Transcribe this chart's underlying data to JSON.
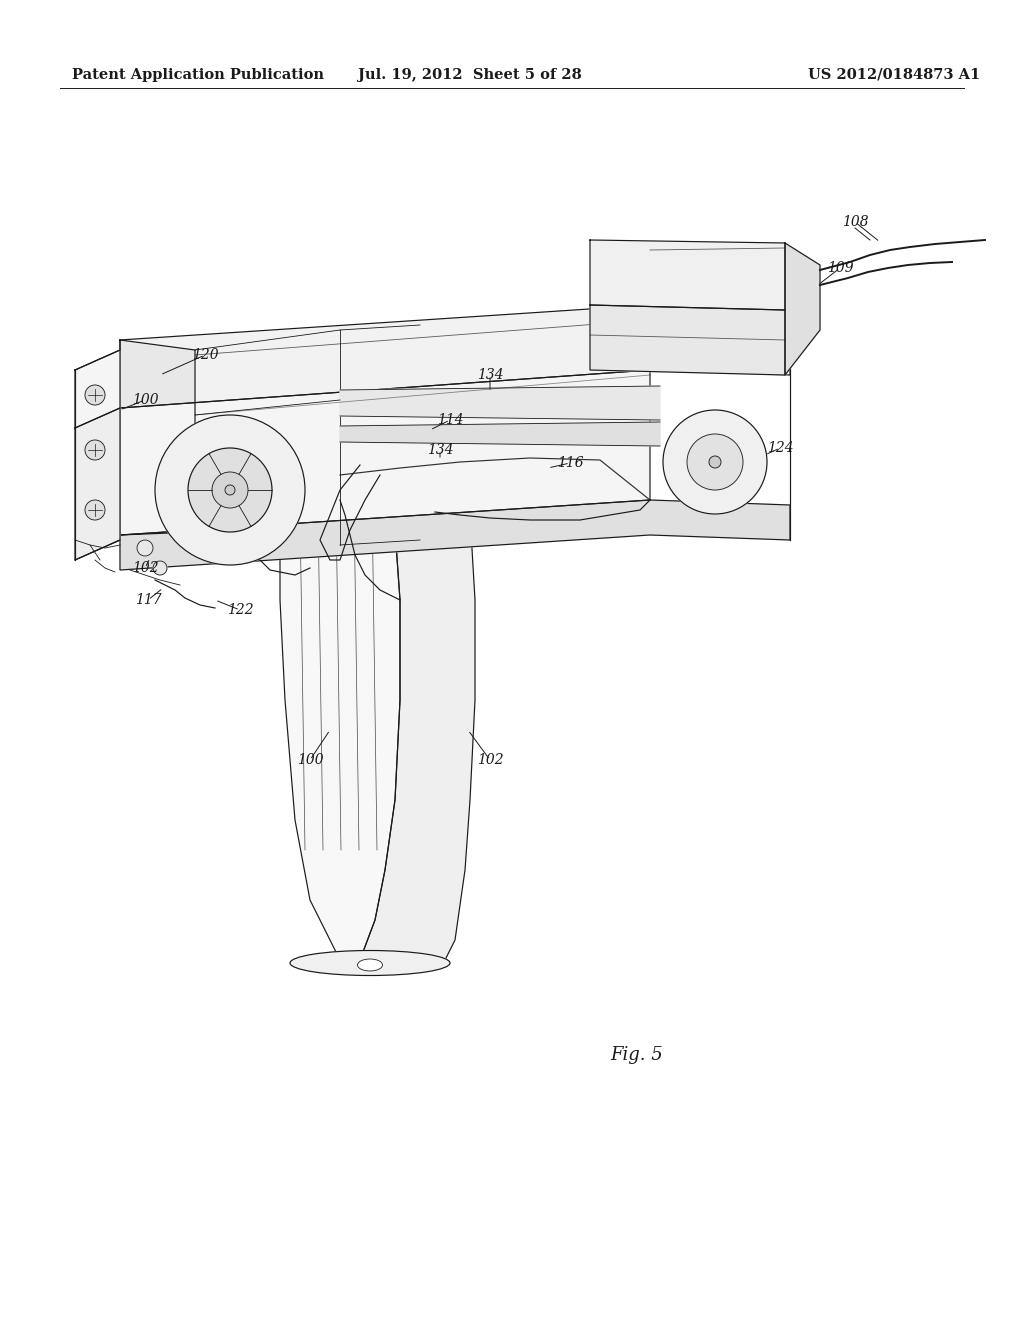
{
  "header_left": "Patent Application Publication",
  "header_center": "Jul. 19, 2012  Sheet 5 of 28",
  "header_right": "US 2012/0184873 A1",
  "figure_label": "Fig. 5",
  "background_color": "#ffffff",
  "text_color": "#000000",
  "line_color": "#1a1a1a",
  "header_fontsize": 10.5,
  "figure_label_fontsize": 13,
  "annotation_fontsize": 10,
  "lw_main": 1.1,
  "lw_thin": 0.6,
  "lw_medium": 0.85
}
